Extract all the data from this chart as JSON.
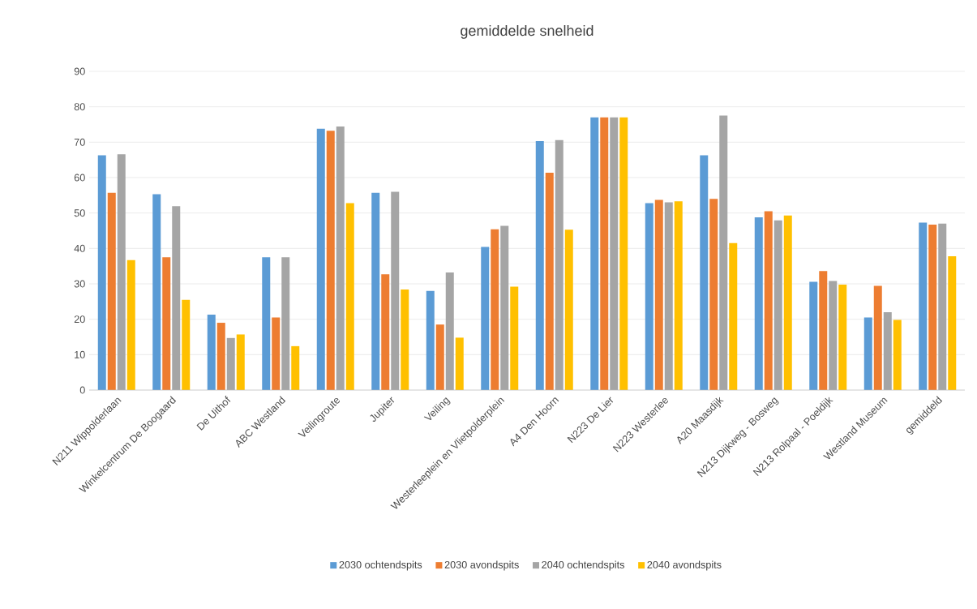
{
  "chart_data": {
    "type": "bar",
    "title": "gemiddelde  snelheid",
    "categories": [
      "N211 Wippolderlaan",
      "Winkelcentrum De Boogaard",
      "De Uithof",
      "ABC Westland",
      "Veilingroute",
      "Jupiter",
      "Veiling",
      "Westerleeplein en Vlietpolderplein",
      "A4 Den Hoorn",
      "N223 De Lier",
      "N223 Westerlee",
      "A20 Maasdijk",
      "N213 Dijkweg - Bosweg",
      "N213 Rolpaal - Poeldijk",
      "Westland Museum",
      "gemiddeld"
    ],
    "series": [
      {
        "name": "2030 ochtendspits",
        "color": "#5b9bd5",
        "values": [
          66.3,
          55.3,
          21.3,
          37.5,
          73.8,
          55.7,
          28,
          40.4,
          70.3,
          77,
          52.8,
          66.3,
          48.8,
          30.6,
          20.5,
          47.3
        ]
      },
      {
        "name": "2030 avondspits",
        "color": "#ed7d31",
        "values": [
          55.7,
          37.5,
          19,
          20.5,
          73.2,
          32.7,
          18.5,
          45.4,
          61.4,
          77,
          53.7,
          54,
          50.5,
          33.6,
          29.4,
          46.7
        ]
      },
      {
        "name": "2040 ochtendspits",
        "color": "#a5a5a5",
        "values": [
          66.6,
          51.9,
          14.7,
          37.5,
          74.4,
          56,
          33.2,
          46.4,
          70.6,
          77,
          53,
          77.5,
          47.9,
          30.8,
          22,
          47
        ]
      },
      {
        "name": "2040 avondspits",
        "color": "#ffc000",
        "values": [
          36.7,
          25.5,
          15.7,
          12.4,
          52.8,
          28.4,
          14.8,
          29.2,
          45.3,
          77,
          53.3,
          41.5,
          49.3,
          29.8,
          19.8,
          37.8
        ]
      }
    ],
    "ylim": [
      0,
      90
    ],
    "yticks": [
      0,
      10,
      20,
      30,
      40,
      50,
      60,
      70,
      80,
      90
    ],
    "grid": "y",
    "legend": "bottom"
  }
}
